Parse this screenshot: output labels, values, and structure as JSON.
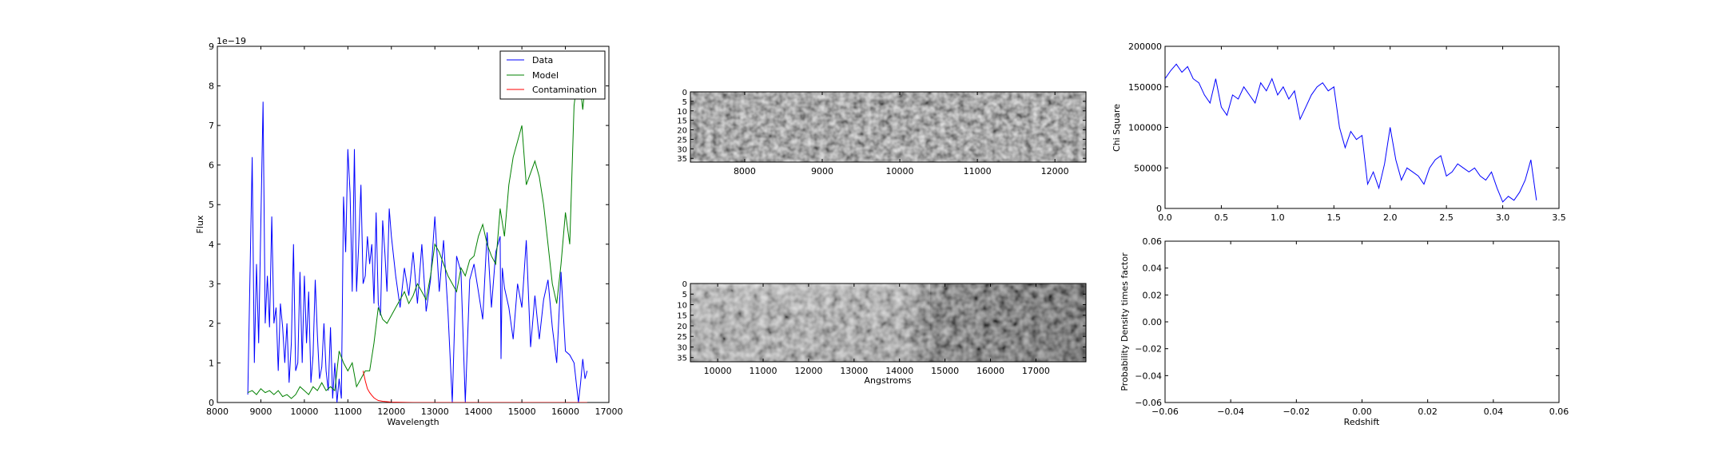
{
  "chart_data": [
    {
      "type": "line",
      "id": "spectrum",
      "xlabel": "Wavelength",
      "ylabel": "Flux",
      "offset_text": "1e−19",
      "xlim": [
        8000,
        17000
      ],
      "ylim": [
        0,
        9
      ],
      "xticks": [
        "8000",
        "9000",
        "10000",
        "11000",
        "12000",
        "13000",
        "14000",
        "15000",
        "16000",
        "17000"
      ],
      "yticks": [
        "0",
        "1",
        "2",
        "3",
        "4",
        "5",
        "6",
        "7",
        "8",
        "9"
      ],
      "legend_position": "top-right",
      "series": [
        {
          "name": "Data",
          "color": "#0000ff",
          "x": [
            8700,
            8800,
            8850,
            8900,
            8950,
            9000,
            9050,
            9100,
            9150,
            9200,
            9250,
            9300,
            9350,
            9400,
            9450,
            9500,
            9550,
            9600,
            9650,
            9700,
            9750,
            9800,
            9850,
            9900,
            9950,
            10000,
            10050,
            10100,
            10150,
            10200,
            10250,
            10300,
            10350,
            10400,
            10450,
            10500,
            10550,
            10600,
            10650,
            10700,
            10750,
            10800,
            10850,
            10900,
            10950,
            11000,
            11050,
            11100,
            11150,
            11200,
            11250,
            11300,
            11350,
            11400,
            11450,
            11500,
            11550,
            11600,
            11650,
            11700,
            11750,
            11800,
            11850,
            11900,
            11950,
            12000,
            12100,
            12200,
            12300,
            12400,
            12500,
            12600,
            12700,
            12800,
            12900,
            13000,
            13100,
            13200,
            13300,
            13400,
            13500,
            13600,
            13700,
            13800,
            13900,
            14000,
            14100,
            14200,
            14300,
            14400,
            14500,
            14520,
            14550,
            14600,
            14700,
            14800,
            14900,
            15000,
            15100,
            15200,
            15300,
            15400,
            15500,
            15600,
            15700,
            15800,
            15900,
            16000,
            16100,
            16200,
            16300,
            16350,
            16400,
            16450,
            16500
          ],
          "y": [
            0.2,
            6.2,
            1.0,
            3.5,
            1.5,
            4.5,
            7.6,
            2.0,
            3.2,
            1.9,
            4.7,
            2.0,
            2.4,
            0.8,
            2.5,
            1.9,
            1.0,
            2.0,
            0.5,
            1.5,
            4.0,
            0.8,
            1.0,
            3.3,
            1.0,
            3.2,
            1.5,
            2.8,
            0.5,
            1.2,
            3.1,
            1.7,
            0.6,
            0.9,
            2.0,
            0.8,
            0.3,
            1.9,
            0.1,
            1.0,
            0.0,
            0.6,
            0.1,
            5.2,
            3.8,
            6.4,
            5.3,
            2.8,
            6.4,
            2.8,
            4.0,
            5.5,
            3.0,
            3.2,
            4.2,
            3.5,
            4.0,
            2.5,
            4.8,
            2.5,
            2.2,
            4.6,
            3.8,
            2.8,
            4.9,
            4.2,
            3.2,
            2.4,
            3.4,
            2.7,
            3.8,
            2.5,
            4.0,
            2.3,
            3.1,
            4.7,
            2.8,
            4.1,
            2.3,
            0.0,
            3.7,
            3.3,
            0.0,
            3.1,
            3.5,
            2.8,
            2.1,
            4.3,
            2.4,
            3.8,
            4.2,
            1.1,
            3.4,
            2.9,
            2.4,
            1.6,
            3.0,
            2.4,
            4.1,
            1.4,
            2.7,
            1.6,
            2.6,
            3.1,
            1.9,
            1.0,
            3.3,
            1.3,
            1.2,
            1.0,
            0.0,
            0.5,
            1.1,
            0.6,
            0.8
          ]
        },
        {
          "name": "Model",
          "color": "#008000",
          "x": [
            8700,
            8800,
            8900,
            9000,
            9100,
            9200,
            9300,
            9400,
            9500,
            9600,
            9700,
            9800,
            9900,
            10000,
            10100,
            10200,
            10300,
            10400,
            10500,
            10600,
            10700,
            10800,
            10900,
            11000,
            11100,
            11200,
            11300,
            11400,
            11500,
            11600,
            11700,
            11800,
            11900,
            12000,
            12100,
            12200,
            12300,
            12400,
            12500,
            12600,
            12700,
            12800,
            12900,
            13000,
            13100,
            13200,
            13300,
            13400,
            13500,
            13600,
            13700,
            13800,
            13900,
            14000,
            14100,
            14200,
            14300,
            14400,
            14500,
            14600,
            14700,
            14800,
            14900,
            15000,
            15100,
            15200,
            15300,
            15400,
            15500,
            15600,
            15700,
            15800,
            15900,
            16000,
            16100,
            16200,
            16300,
            16400,
            16500
          ],
          "y": [
            0.25,
            0.3,
            0.2,
            0.35,
            0.25,
            0.3,
            0.2,
            0.3,
            0.15,
            0.2,
            0.1,
            0.2,
            0.4,
            0.3,
            0.2,
            0.4,
            0.3,
            0.5,
            0.3,
            0.4,
            0.3,
            1.3,
            1.0,
            0.8,
            1.0,
            0.4,
            0.6,
            0.8,
            0.8,
            1.5,
            2.4,
            2.1,
            2.0,
            2.2,
            2.4,
            2.6,
            2.8,
            2.5,
            2.7,
            3.0,
            2.8,
            2.6,
            3.2,
            4.0,
            3.8,
            3.5,
            3.2,
            3.0,
            2.8,
            3.4,
            3.2,
            3.6,
            3.7,
            4.2,
            4.5,
            4.0,
            3.7,
            3.5,
            4.9,
            4.2,
            5.5,
            6.2,
            6.6,
            7.0,
            5.5,
            5.8,
            6.1,
            5.7,
            5.0,
            4.0,
            3.0,
            2.5,
            3.5,
            4.8,
            4.0,
            7.5,
            8.4,
            7.4,
            8.6
          ]
        },
        {
          "name": "Contamination",
          "color": "#ff0000",
          "x": [
            11350,
            11400,
            11450,
            11500,
            11550,
            11600,
            11650,
            11700,
            11800,
            11900,
            12000,
            12500,
            13000,
            14000,
            15000,
            16000,
            16500
          ],
          "y": [
            0.8,
            0.55,
            0.35,
            0.25,
            0.18,
            0.12,
            0.08,
            0.05,
            0.03,
            0.02,
            0.01,
            0.0,
            0.0,
            0.0,
            0.0,
            0.0,
            0.0
          ]
        }
      ]
    },
    {
      "type": "heatmap",
      "id": "spec2d_top",
      "xticks": [
        "8000",
        "9000",
        "10000",
        "11000",
        "12000"
      ],
      "yticks": [
        "0",
        "5",
        "10",
        "15",
        "20",
        "25",
        "30",
        "35"
      ],
      "xlim": [
        7300,
        12400
      ],
      "ylim": [
        0,
        37
      ]
    },
    {
      "type": "heatmap",
      "id": "spec2d_bottom",
      "xlabel": "Angstroms",
      "xticks": [
        "10000",
        "11000",
        "12000",
        "13000",
        "14000",
        "15000",
        "16000",
        "17000"
      ],
      "yticks": [
        "0",
        "5",
        "10",
        "15",
        "20",
        "25",
        "30",
        "35"
      ],
      "xlim": [
        9400,
        18100
      ],
      "ylim": [
        0,
        37
      ]
    },
    {
      "type": "line",
      "id": "chisq",
      "ylabel": "Chi Square",
      "xlim": [
        0,
        3.5
      ],
      "ylim": [
        0,
        200000
      ],
      "xticks": [
        "0.0",
        "0.5",
        "1.0",
        "1.5",
        "2.0",
        "2.5",
        "3.0",
        "3.5"
      ],
      "yticks": [
        "0",
        "50000",
        "100000",
        "150000",
        "200000"
      ],
      "series": [
        {
          "color": "#0000ff",
          "x": [
            0.0,
            0.05,
            0.1,
            0.15,
            0.2,
            0.25,
            0.3,
            0.35,
            0.4,
            0.45,
            0.5,
            0.55,
            0.6,
            0.65,
            0.7,
            0.75,
            0.8,
            0.85,
            0.9,
            0.95,
            1.0,
            1.05,
            1.1,
            1.15,
            1.2,
            1.25,
            1.3,
            1.35,
            1.4,
            1.45,
            1.5,
            1.55,
            1.6,
            1.65,
            1.7,
            1.75,
            1.8,
            1.85,
            1.9,
            1.95,
            2.0,
            2.05,
            2.1,
            2.15,
            2.2,
            2.25,
            2.3,
            2.35,
            2.4,
            2.45,
            2.5,
            2.55,
            2.6,
            2.65,
            2.7,
            2.75,
            2.8,
            2.85,
            2.9,
            2.95,
            3.0,
            3.05,
            3.1,
            3.15,
            3.2,
            3.25,
            3.3
          ],
          "y": [
            160000,
            170000,
            178000,
            168000,
            175000,
            160000,
            155000,
            140000,
            130000,
            160000,
            125000,
            115000,
            140000,
            135000,
            150000,
            140000,
            130000,
            155000,
            145000,
            160000,
            140000,
            150000,
            135000,
            145000,
            110000,
            125000,
            140000,
            150000,
            155000,
            145000,
            150000,
            100000,
            75000,
            95000,
            85000,
            90000,
            30000,
            45000,
            25000,
            55000,
            100000,
            60000,
            35000,
            50000,
            45000,
            40000,
            30000,
            50000,
            60000,
            65000,
            40000,
            45000,
            55000,
            50000,
            45000,
            50000,
            40000,
            35000,
            45000,
            25000,
            8000,
            15000,
            10000,
            20000,
            35000,
            60000,
            10000
          ]
        }
      ]
    },
    {
      "type": "line",
      "id": "pdf",
      "xlabel": "Redshift",
      "ylabel": "Probability Density times factor",
      "xlim": [
        -0.06,
        0.06
      ],
      "ylim": [
        -0.06,
        0.06
      ],
      "xticks": [
        "−0.06",
        "−0.04",
        "−0.02",
        "0.00",
        "0.02",
        "0.04",
        "0.06"
      ],
      "yticks": [
        "−0.06",
        "−0.04",
        "−0.02",
        "0.00",
        "0.02",
        "0.04",
        "0.06"
      ],
      "series": []
    }
  ]
}
